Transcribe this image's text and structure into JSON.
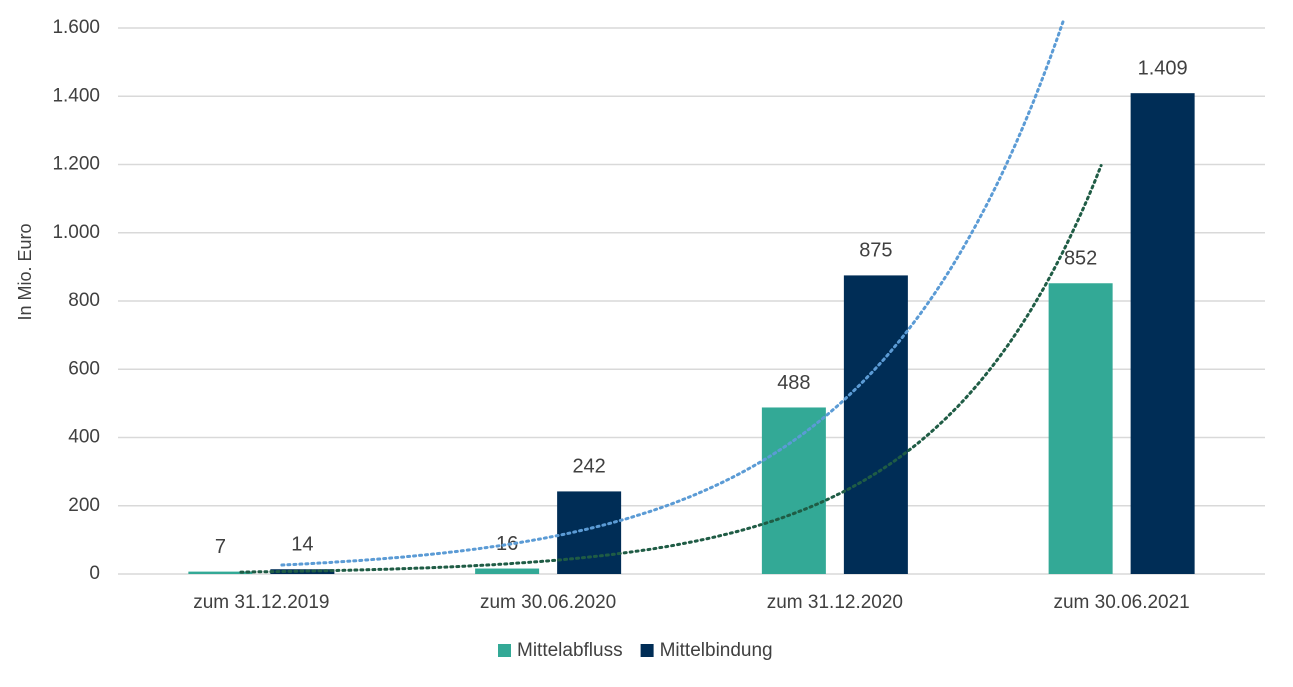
{
  "chart_data": {
    "type": "bar",
    "y_label": "In Mio. Euro",
    "categories": [
      "zum 31.12.2019",
      "zum 30.06.2020",
      "zum 31.12.2020",
      "zum 30.06.2021"
    ],
    "series": [
      {
        "name": "Mittelabfluss",
        "color": "#33a996",
        "trendline_color": "#1f5c45",
        "values": [
          7,
          16,
          488,
          852
        ]
      },
      {
        "name": "Mittelbindung",
        "color": "#002d56",
        "trendline_color": "#5b9bd5",
        "values": [
          14,
          242,
          875,
          1409
        ],
        "value_labels": [
          "14",
          "242",
          "875",
          "1.409"
        ]
      }
    ],
    "ylim": [
      0,
      1600
    ],
    "yticks": [
      0,
      200,
      400,
      600,
      800,
      {
        "value": 1000,
        "label": "1.000"
      },
      {
        "value": 1200,
        "label": "1.200"
      },
      {
        "value": 1400,
        "label": "1.400"
      },
      {
        "value": 1600,
        "label": "1.600"
      }
    ],
    "grid": true,
    "trendline": "exponential",
    "legend": "bottom"
  }
}
